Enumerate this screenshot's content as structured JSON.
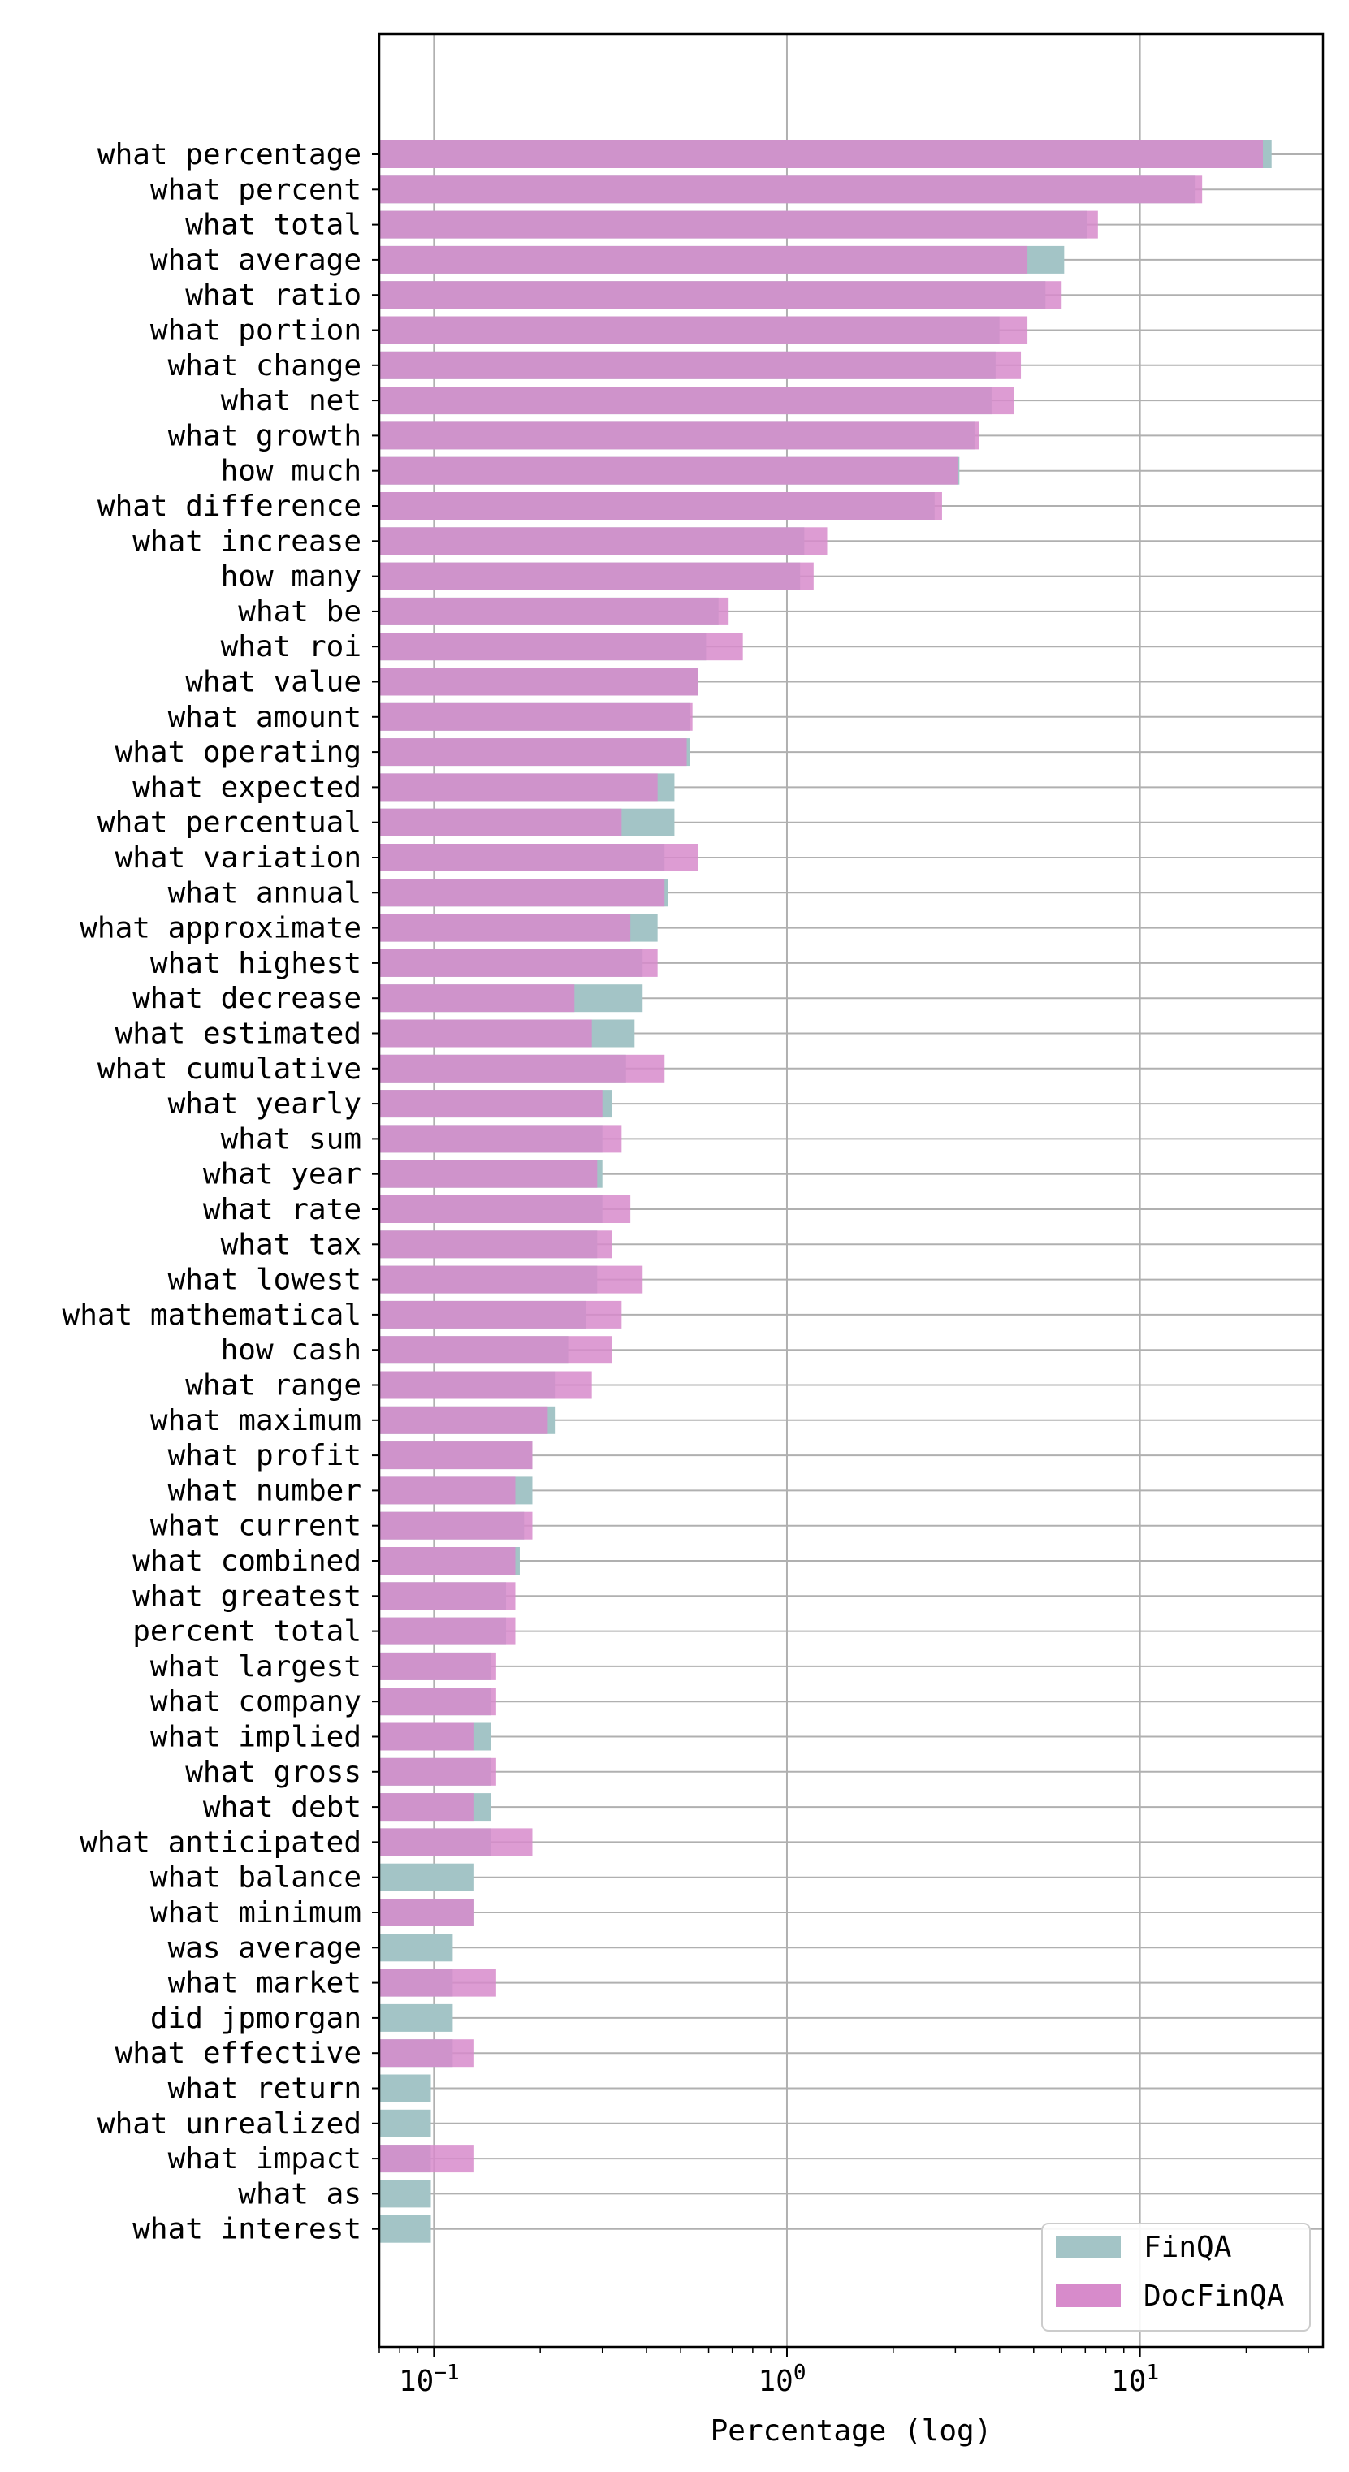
{
  "chart_data": {
    "type": "bar",
    "orientation": "horizontal",
    "xlabel": "Percentage (log)",
    "xscale": "log",
    "xlim": [
      0.07,
      33
    ],
    "xticks": [
      0.1,
      1,
      10
    ],
    "xtick_labels": [
      {
        "base": "10",
        "exp": "−1"
      },
      {
        "base": "10",
        "exp": "0"
      },
      {
        "base": "10",
        "exp": "1"
      }
    ],
    "grid": true,
    "legend_position": "bottom-right",
    "categories": [
      "what percentage",
      "what percent",
      "what total",
      "what average",
      "what ratio",
      "what portion",
      "what change",
      "what net",
      "what growth",
      "how much",
      "what difference",
      "what increase",
      "how many",
      "what be",
      "what roi",
      "what value",
      "what amount",
      "what operating",
      "what expected",
      "what percentual",
      "what variation",
      "what annual",
      "what approximate",
      "what highest",
      "what decrease",
      "what estimated",
      "what cumulative",
      "what yearly",
      "what sum",
      "what year",
      "what rate",
      "what tax",
      "what lowest",
      "what mathematical",
      "how cash",
      "what range",
      "what maximum",
      "what profit",
      "what number",
      "what current",
      "what combined",
      "what greatest",
      "percent total",
      "what largest",
      "what company",
      "what implied",
      "what gross",
      "what debt",
      "what anticipated",
      "what balance",
      "what minimum",
      "was average",
      "what market",
      "did jpmorgan",
      "what effective",
      "what return",
      "what unrealized",
      "what impact",
      "what as",
      "what interest"
    ],
    "series": [
      {
        "name": "FinQA",
        "color": "#a3c4c6",
        "values": [
          23.6,
          14.3,
          7.1,
          6.1,
          5.4,
          4.0,
          3.9,
          3.8,
          3.4,
          3.08,
          2.62,
          1.12,
          1.09,
          0.64,
          0.59,
          0.56,
          0.53,
          0.53,
          0.48,
          0.48,
          0.45,
          0.46,
          0.43,
          0.39,
          0.39,
          0.37,
          0.35,
          0.32,
          0.3,
          0.3,
          0.3,
          0.29,
          0.29,
          0.27,
          0.24,
          0.22,
          0.22,
          0.19,
          0.19,
          0.18,
          0.175,
          0.16,
          0.16,
          0.145,
          0.145,
          0.145,
          0.145,
          0.145,
          0.145,
          0.13,
          0.13,
          0.113,
          0.113,
          0.113,
          0.113,
          0.098,
          0.098,
          0.098,
          0.098,
          0.098
        ]
      },
      {
        "name": "DocFinQA",
        "color": "#d78bcb",
        "values": [
          22.3,
          15.0,
          7.6,
          4.8,
          6.0,
          4.8,
          4.6,
          4.4,
          3.5,
          3.05,
          2.75,
          1.3,
          1.19,
          0.68,
          0.75,
          0.56,
          0.54,
          0.52,
          0.43,
          0.34,
          0.56,
          0.45,
          0.36,
          0.43,
          0.25,
          0.28,
          0.45,
          0.3,
          0.34,
          0.29,
          0.36,
          0.32,
          0.39,
          0.34,
          0.32,
          0.28,
          0.21,
          0.19,
          0.17,
          0.19,
          0.17,
          0.17,
          0.17,
          0.15,
          0.15,
          0.13,
          0.15,
          0.13,
          0.19,
          0.0,
          0.13,
          0.0,
          0.15,
          0.0,
          0.13,
          0.0,
          0.0,
          0.13,
          0.0,
          0.0
        ]
      }
    ]
  }
}
